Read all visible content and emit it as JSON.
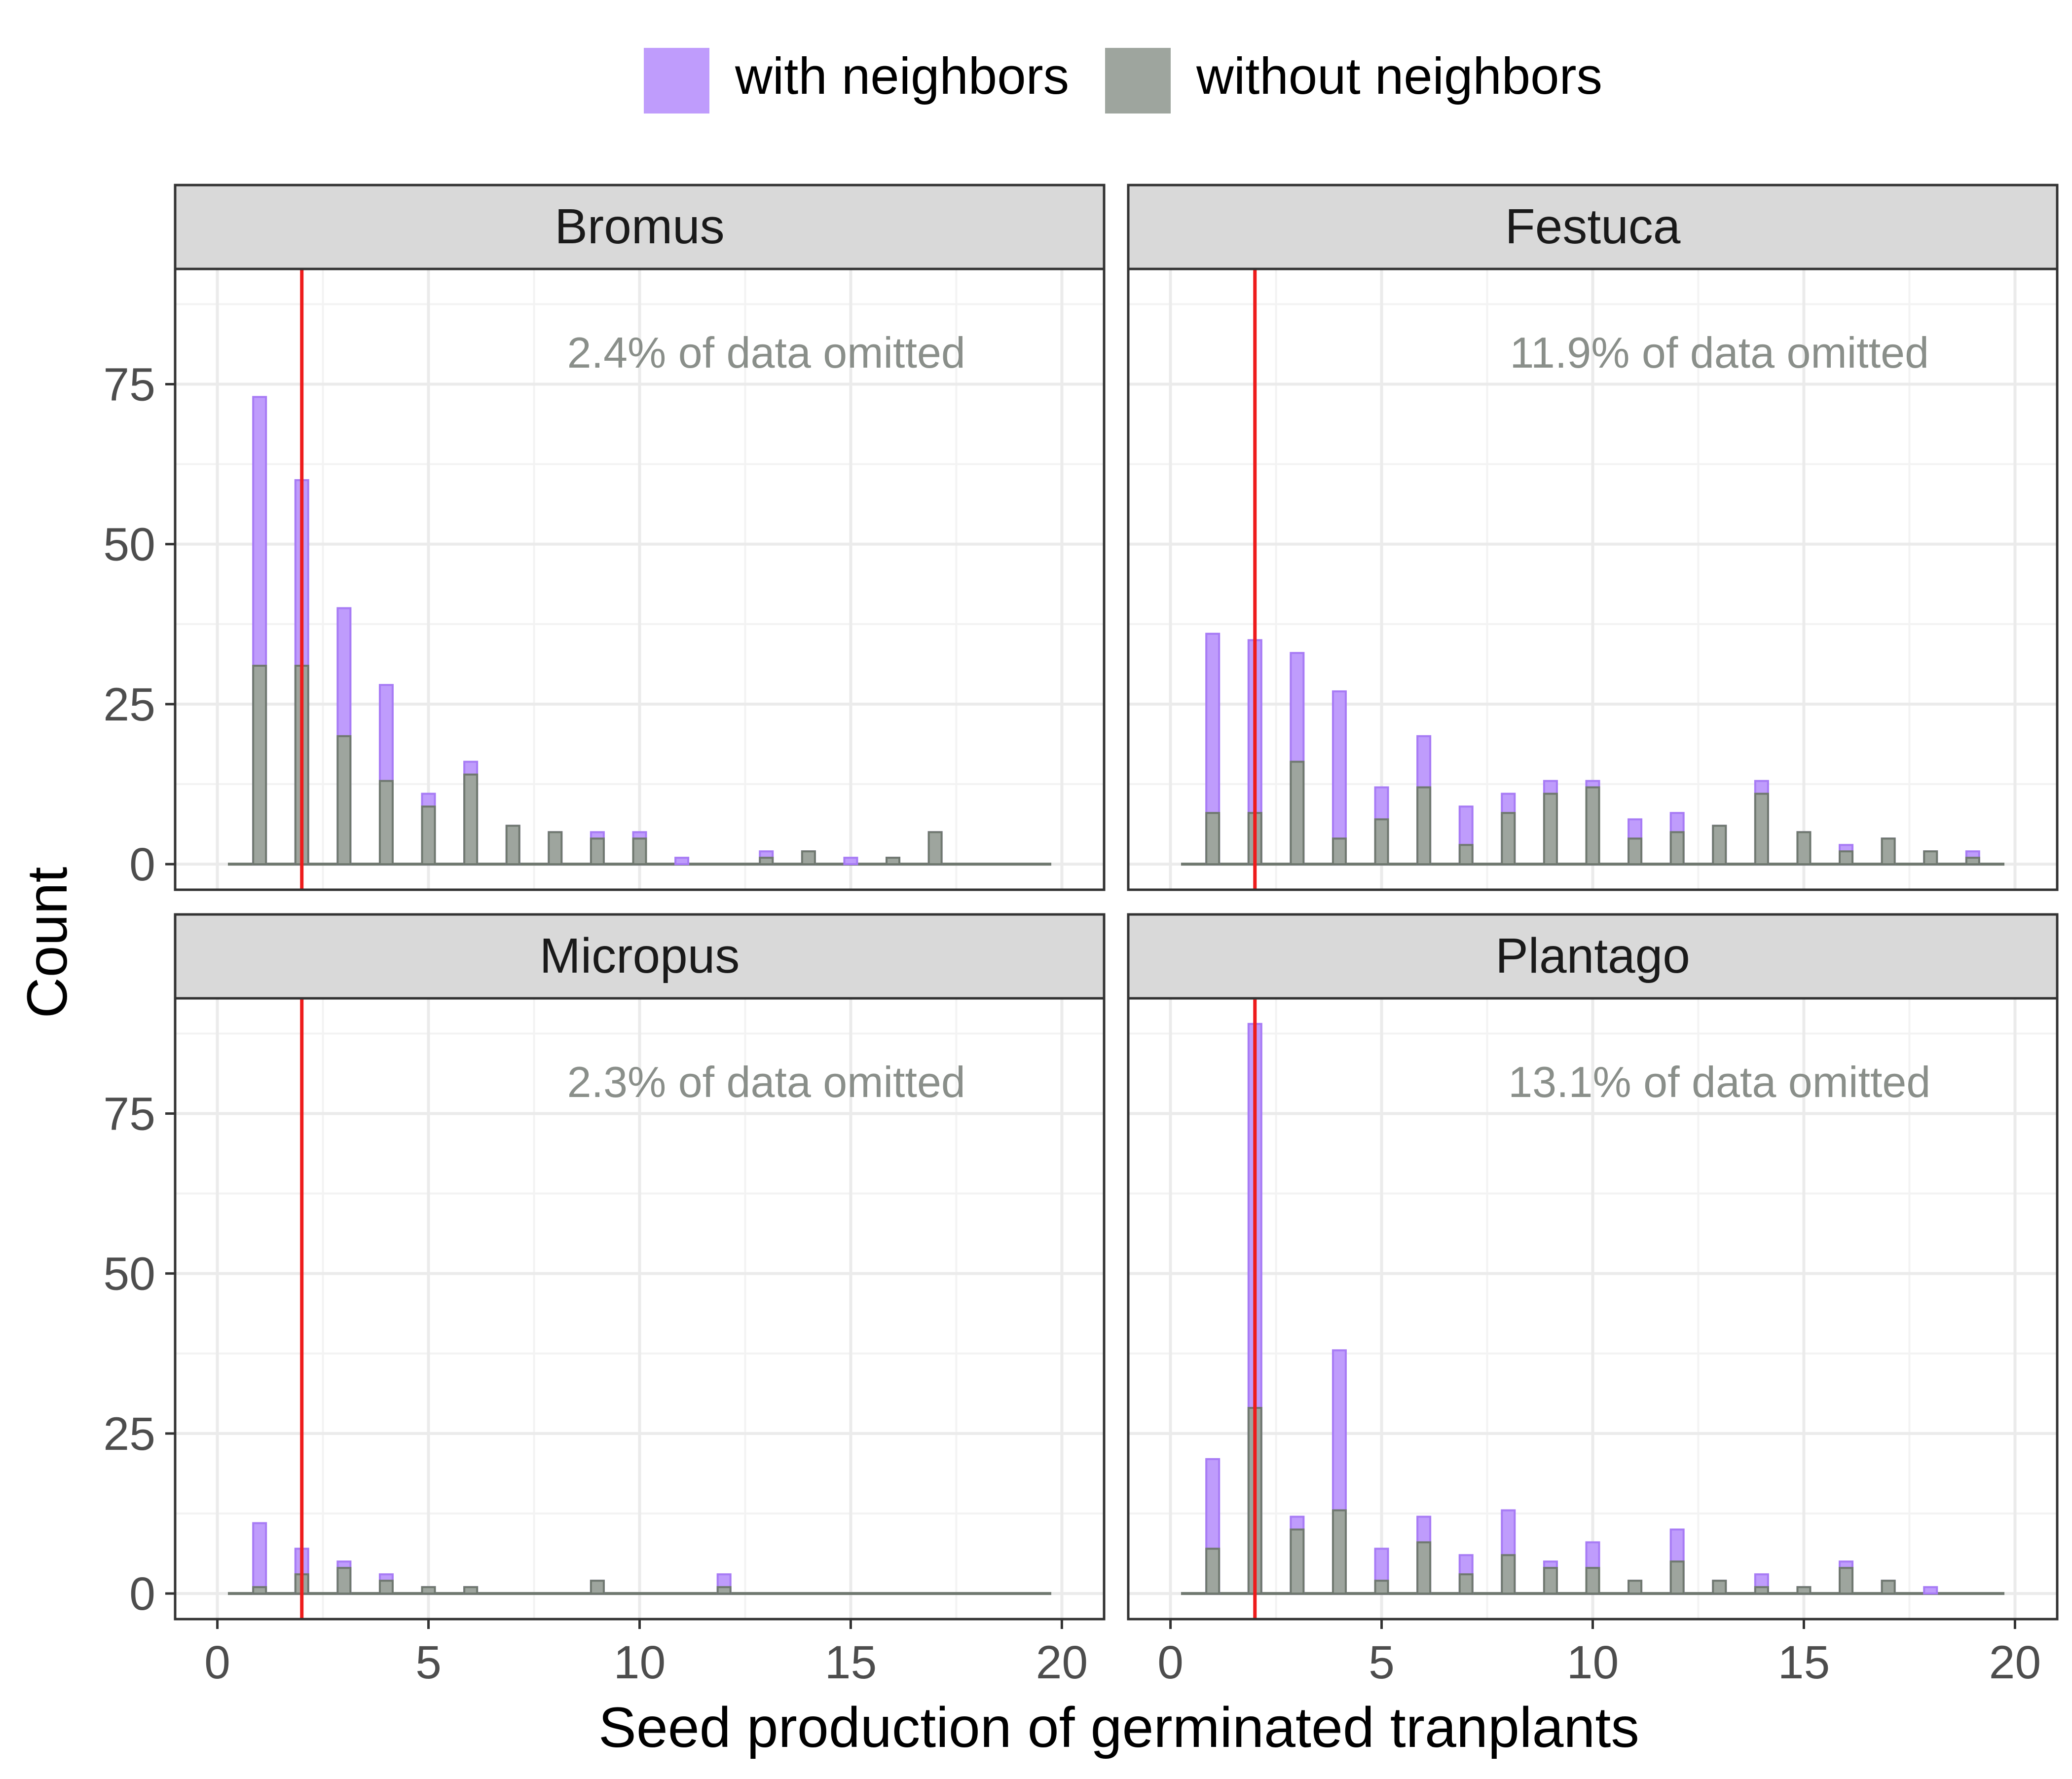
{
  "legend": {
    "items": [
      {
        "label": "with neighbors",
        "color": "#bf9cfc"
      },
      {
        "label": "without neighbors",
        "color": "#9ea59e"
      }
    ]
  },
  "axes": {
    "xlabel": "Seed production of germinated tranplants",
    "ylabel": "Count",
    "x_ticks": [
      0,
      5,
      10,
      15,
      20
    ],
    "y_ticks": [
      0,
      25,
      50,
      75
    ]
  },
  "colors": {
    "with_fill": "#bf9cfc",
    "with_stroke": "#a77bf5",
    "without_fill": "#9ea59e",
    "without_stroke": "#6f786f",
    "reference_line": "#ee1c1c",
    "strip_bg": "#d9d9d9",
    "annotation": "#8a8f8a"
  },
  "chart_data": {
    "type": "bar",
    "layout": "faceted 2x2, overlaid histograms",
    "xlim": [
      -1,
      21
    ],
    "ylim": [
      -4,
      93
    ],
    "reference_line_x": 2,
    "panels": [
      {
        "title": "Bromus",
        "annotation": "2.4% of data omitted",
        "series": [
          {
            "name": "with neighbors",
            "x": [
              1,
              2,
              3,
              4,
              5,
              6,
              7,
              8,
              9,
              10,
              11,
              12,
              13,
              14,
              15,
              16,
              17
            ],
            "values": [
              73,
              60,
              40,
              28,
              11,
              16,
              6,
              5,
              5,
              5,
              1,
              0,
              2,
              2,
              1,
              1,
              5
            ]
          },
          {
            "name": "without neighbors",
            "x": [
              1,
              2,
              3,
              4,
              5,
              6,
              7,
              8,
              9,
              10,
              11,
              12,
              13,
              14,
              15,
              16,
              17
            ],
            "values": [
              31,
              31,
              20,
              13,
              9,
              14,
              6,
              5,
              4,
              4,
              0,
              0,
              1,
              2,
              0,
              1,
              5
            ]
          }
        ]
      },
      {
        "title": "Festuca",
        "annotation": "11.9% of data omitted",
        "series": [
          {
            "name": "with neighbors",
            "x": [
              1,
              2,
              3,
              4,
              5,
              6,
              7,
              8,
              9,
              10,
              11,
              12,
              13,
              14,
              15,
              16,
              17,
              18,
              19
            ],
            "values": [
              36,
              35,
              33,
              27,
              12,
              20,
              9,
              11,
              13,
              13,
              7,
              8,
              6,
              13,
              5,
              3,
              4,
              2,
              2
            ]
          },
          {
            "name": "without neighbors",
            "x": [
              1,
              2,
              3,
              4,
              5,
              6,
              7,
              8,
              9,
              10,
              11,
              12,
              13,
              14,
              15,
              16,
              17,
              18,
              19
            ],
            "values": [
              8,
              8,
              16,
              4,
              7,
              12,
              3,
              8,
              11,
              12,
              4,
              5,
              6,
              11,
              5,
              2,
              4,
              2,
              1
            ]
          }
        ]
      },
      {
        "title": "Micropus",
        "annotation": "2.3% of data omitted",
        "series": [
          {
            "name": "with neighbors",
            "x": [
              1,
              2,
              3,
              4,
              5,
              6,
              7,
              8,
              9,
              10,
              11,
              12
            ],
            "values": [
              11,
              7,
              5,
              3,
              1,
              1,
              0,
              0,
              2,
              0,
              0,
              3
            ]
          },
          {
            "name": "without neighbors",
            "x": [
              1,
              2,
              3,
              4,
              5,
              6,
              7,
              8,
              9,
              10,
              11,
              12
            ],
            "values": [
              1,
              3,
              4,
              2,
              1,
              1,
              0,
              0,
              2,
              0,
              0,
              1
            ]
          }
        ]
      },
      {
        "title": "Plantago",
        "annotation": "13.1% of data omitted",
        "series": [
          {
            "name": "with neighbors",
            "x": [
              1,
              2,
              3,
              4,
              5,
              6,
              7,
              8,
              9,
              10,
              11,
              12,
              13,
              14,
              15,
              16,
              17,
              18
            ],
            "values": [
              21,
              89,
              12,
              38,
              7,
              12,
              6,
              13,
              5,
              8,
              2,
              10,
              2,
              3,
              1,
              5,
              2,
              1
            ]
          },
          {
            "name": "without neighbors",
            "x": [
              1,
              2,
              3,
              4,
              5,
              6,
              7,
              8,
              9,
              10,
              11,
              12,
              13,
              14,
              15,
              16,
              17,
              18
            ],
            "values": [
              7,
              29,
              10,
              13,
              2,
              8,
              3,
              6,
              4,
              4,
              2,
              5,
              2,
              1,
              1,
              4,
              2,
              0
            ]
          }
        ]
      }
    ],
    "grid": true,
    "legend_position": "top"
  }
}
